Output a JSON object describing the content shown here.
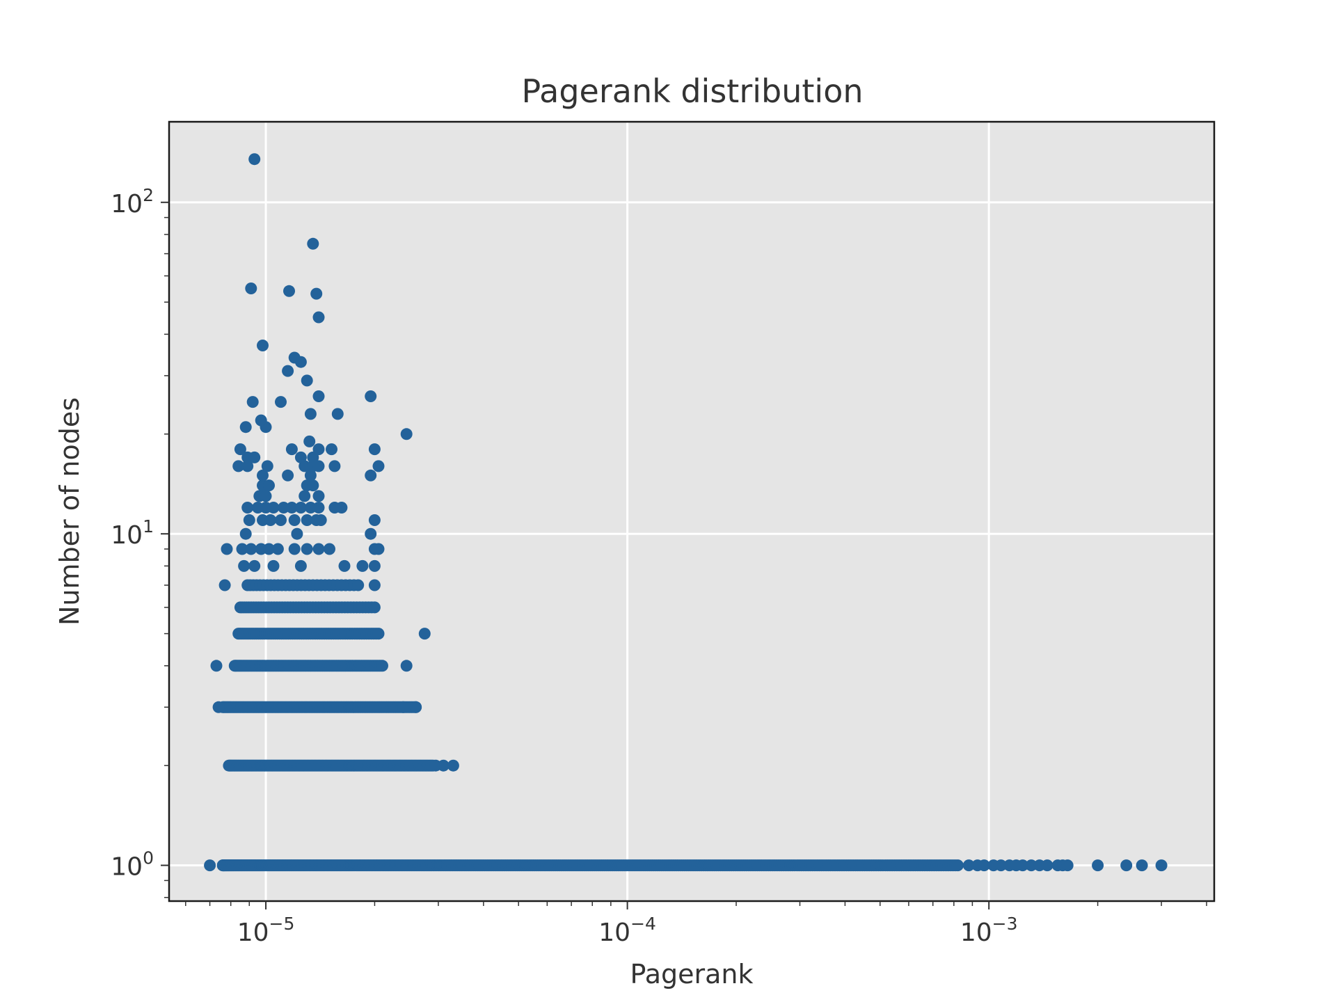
{
  "chart_data": {
    "type": "scatter",
    "title": "Pagerank distribution",
    "xlabel": "Pagerank",
    "ylabel": "Number of nodes",
    "xscale": "log",
    "yscale": "log",
    "xlim": [
      5.4e-06,
      0.0042
    ],
    "ylim": [
      0.78,
      175
    ],
    "grid": true,
    "legend": "none",
    "colors": {
      "point": "#23629a",
      "plot_background": "#e5e5e5",
      "grid": "#ffffff"
    },
    "x_ticks": [
      {
        "value": 1e-05,
        "base": "10",
        "exp": "−5"
      },
      {
        "value": 0.0001,
        "base": "10",
        "exp": "−4"
      },
      {
        "value": 0.001,
        "base": "10",
        "exp": "−3"
      }
    ],
    "y_ticks": [
      {
        "value": 1,
        "base": "10",
        "exp": "0"
      },
      {
        "value": 10,
        "base": "10",
        "exp": "1"
      },
      {
        "value": 100,
        "base": "10",
        "exp": "2"
      }
    ],
    "point_groups": [
      {
        "y": 1,
        "x_min": 7.6e-06,
        "x_max": 0.00082,
        "count": 420
      },
      {
        "y": 2,
        "x_min": 7.9e-06,
        "x_max": 2.9e-05,
        "count": 150
      },
      {
        "y": 3,
        "x_min": 7.6e-06,
        "x_max": 2.6e-05,
        "count": 120
      },
      {
        "y": 4,
        "x_min": 8.2e-06,
        "x_max": 2.1e-05,
        "count": 90
      },
      {
        "y": 5,
        "x_min": 8.4e-06,
        "x_max": 2.05e-05,
        "count": 65
      },
      {
        "y": 6,
        "x_min": 8.5e-06,
        "x_max": 2e-05,
        "count": 50
      },
      {
        "y": 7,
        "x_min": 8.9e-06,
        "x_max": 1.8e-05,
        "count": 30
      }
    ],
    "points": [
      [
        7e-06,
        1
      ],
      [
        0.00088,
        1
      ],
      [
        0.00093,
        1
      ],
      [
        0.00097,
        1
      ],
      [
        0.00103,
        1
      ],
      [
        0.00108,
        1
      ],
      [
        0.00114,
        1
      ],
      [
        0.00119,
        1
      ],
      [
        0.00124,
        1
      ],
      [
        0.00131,
        1
      ],
      [
        0.00138,
        1
      ],
      [
        0.00145,
        1
      ],
      [
        0.00155,
        1
      ],
      [
        0.0016,
        1
      ],
      [
        0.00165,
        1
      ],
      [
        0.002,
        1
      ],
      [
        0.0024,
        1
      ],
      [
        0.00265,
        1
      ],
      [
        0.003,
        1
      ],
      [
        2.95e-05,
        2
      ],
      [
        3.1e-05,
        2
      ],
      [
        3.3e-05,
        2
      ],
      [
        7.4e-06,
        3
      ],
      [
        2.4e-05,
        3
      ],
      [
        2.6e-05,
        3
      ],
      [
        7.3e-06,
        4
      ],
      [
        2.45e-05,
        4
      ],
      [
        2.75e-05,
        5
      ],
      [
        7.7e-06,
        7
      ],
      [
        2e-05,
        7
      ],
      [
        8.7e-06,
        8
      ],
      [
        9.3e-06,
        8
      ],
      [
        1.05e-05,
        8
      ],
      [
        1.25e-05,
        8
      ],
      [
        1.65e-05,
        8
      ],
      [
        1.85e-05,
        8
      ],
      [
        2e-05,
        8
      ],
      [
        7.8e-06,
        9
      ],
      [
        8.6e-06,
        9
      ],
      [
        9.1e-06,
        9
      ],
      [
        9.7e-06,
        9
      ],
      [
        1.02e-05,
        9
      ],
      [
        1.08e-05,
        9
      ],
      [
        1.2e-05,
        9
      ],
      [
        1.3e-05,
        9
      ],
      [
        1.4e-05,
        9
      ],
      [
        1.5e-05,
        9
      ],
      [
        2e-05,
        9
      ],
      [
        2.05e-05,
        9
      ],
      [
        8.8e-06,
        10
      ],
      [
        1.22e-05,
        10
      ],
      [
        1.95e-05,
        10
      ],
      [
        9e-06,
        11
      ],
      [
        9.8e-06,
        11
      ],
      [
        1.03e-05,
        11
      ],
      [
        1.1e-05,
        11
      ],
      [
        1.2e-05,
        11
      ],
      [
        1.3e-05,
        11
      ],
      [
        1.38e-05,
        11
      ],
      [
        1.42e-05,
        11
      ],
      [
        2e-05,
        11
      ],
      [
        8.9e-06,
        12
      ],
      [
        9.5e-06,
        12
      ],
      [
        1e-05,
        12
      ],
      [
        1.05e-05,
        12
      ],
      [
        1.12e-05,
        12
      ],
      [
        1.18e-05,
        12
      ],
      [
        1.25e-05,
        12
      ],
      [
        1.33e-05,
        12
      ],
      [
        1.4e-05,
        12
      ],
      [
        1.55e-05,
        12
      ],
      [
        1.62e-05,
        12
      ],
      [
        9.6e-06,
        13
      ],
      [
        1e-05,
        13
      ],
      [
        1.28e-05,
        13
      ],
      [
        1.4e-05,
        13
      ],
      [
        9.8e-06,
        14
      ],
      [
        1.02e-05,
        14
      ],
      [
        1.3e-05,
        14
      ],
      [
        1.35e-05,
        14
      ],
      [
        9.8e-06,
        15
      ],
      [
        1.15e-05,
        15
      ],
      [
        1.33e-05,
        15
      ],
      [
        1.95e-05,
        15
      ],
      [
        8.4e-06,
        16
      ],
      [
        8.9e-06,
        16
      ],
      [
        1.01e-05,
        16
      ],
      [
        1.28e-05,
        16
      ],
      [
        1.35e-05,
        16
      ],
      [
        1.4e-05,
        16
      ],
      [
        1.55e-05,
        16
      ],
      [
        2.05e-05,
        16
      ],
      [
        8.9e-06,
        17
      ],
      [
        9.3e-06,
        17
      ],
      [
        1.25e-05,
        17
      ],
      [
        1.35e-05,
        17
      ],
      [
        8.5e-06,
        18
      ],
      [
        1.18e-05,
        18
      ],
      [
        1.4e-05,
        18
      ],
      [
        1.52e-05,
        18
      ],
      [
        2e-05,
        18
      ],
      [
        1.32e-05,
        19
      ],
      [
        2.45e-05,
        20
      ],
      [
        8.8e-06,
        21
      ],
      [
        1e-05,
        21
      ],
      [
        9.7e-06,
        22
      ],
      [
        1.33e-05,
        23
      ],
      [
        1.58e-05,
        23
      ],
      [
        9.2e-06,
        25
      ],
      [
        1.1e-05,
        25
      ],
      [
        1.4e-05,
        26
      ],
      [
        1.95e-05,
        26
      ],
      [
        1.3e-05,
        29
      ],
      [
        1.15e-05,
        31
      ],
      [
        1.25e-05,
        33
      ],
      [
        1.2e-05,
        34
      ],
      [
        9.8e-06,
        37
      ],
      [
        1.4e-05,
        45
      ],
      [
        1.38e-05,
        53
      ],
      [
        1.16e-05,
        54
      ],
      [
        9.1e-06,
        55
      ],
      [
        1.35e-05,
        75
      ],
      [
        9.3e-06,
        135
      ]
    ]
  }
}
